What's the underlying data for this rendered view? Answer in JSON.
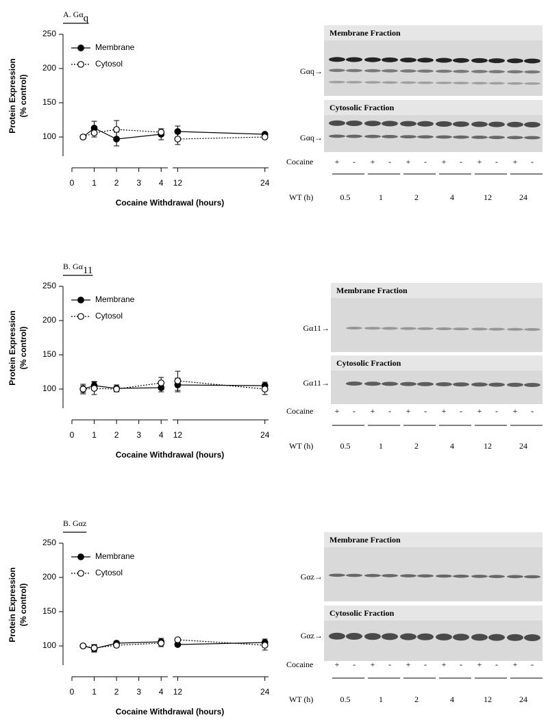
{
  "chart_data": [
    {
      "type": "line",
      "title": [
        "A. Gα",
        "q"
      ],
      "ylabel": [
        "Protein Expression",
        "(% control)"
      ],
      "xlabel": "Cocaine Withdrawal (hours)",
      "x": [
        0.5,
        1,
        2,
        4,
        12,
        24
      ],
      "xlim": [
        0,
        24.5
      ],
      "xbreak": [
        4.3,
        11.3
      ],
      "xticks": [
        0,
        1,
        2,
        3,
        4,
        12,
        24
      ],
      "ylim": [
        75,
        250
      ],
      "yticks": [
        100,
        150,
        200,
        250
      ],
      "series": [
        {
          "name": "Membrane",
          "color": "#000000",
          "marker": "filled",
          "linestyle": "solid",
          "values": [
            100,
            113,
            97,
            104,
            108,
            104
          ],
          "errors": [
            0,
            10,
            10,
            8,
            8,
            0
          ]
        },
        {
          "name": "Cytosol",
          "color": "#000000",
          "marker": "open",
          "linestyle": "dotted",
          "values": [
            100,
            106,
            111,
            107,
            97,
            100
          ],
          "errors": [
            0,
            6,
            13,
            5,
            8,
            0
          ]
        }
      ]
    },
    {
      "type": "line",
      "title": [
        "B. Gα",
        "11"
      ],
      "ylabel": [
        "Protein Expression",
        "(% control)"
      ],
      "xlabel": "Cocaine Withdrawal (hours)",
      "x": [
        0.5,
        1,
        2,
        4,
        12,
        24
      ],
      "xlim": [
        0,
        24.5
      ],
      "xbreak": [
        4.3,
        11.3
      ],
      "xticks": [
        0,
        1,
        2,
        3,
        4,
        12,
        24
      ],
      "ylim": [
        75,
        250
      ],
      "yticks": [
        100,
        150,
        200,
        250
      ],
      "series": [
        {
          "name": "Membrane",
          "color": "#000000",
          "marker": "filled",
          "linestyle": "solid",
          "values": [
            100,
            105,
            101,
            102,
            106,
            105
          ],
          "errors": [
            7,
            6,
            5,
            6,
            10,
            5
          ]
        },
        {
          "name": "Cytosol",
          "color": "#000000",
          "marker": "open",
          "linestyle": "dotted",
          "values": [
            100,
            101,
            100,
            109,
            112,
            100
          ],
          "errors": [
            5,
            9,
            4,
            8,
            14,
            8
          ]
        }
      ]
    },
    {
      "type": "line",
      "title": [
        "B. Gαz"
      ],
      "ylabel": [
        "Protein Expression",
        "(% control)"
      ],
      "xlabel": "Cocaine Withdrawal (hours)",
      "x": [
        0.5,
        1,
        2,
        4,
        12,
        24
      ],
      "xlim": [
        0,
        24.5
      ],
      "xbreak": [
        4.3,
        11.3
      ],
      "xticks": [
        0,
        1,
        2,
        3,
        4,
        12,
        24
      ],
      "ylim": [
        75,
        250
      ],
      "yticks": [
        100,
        150,
        200,
        250
      ],
      "series": [
        {
          "name": "Membrane",
          "color": "#000000",
          "marker": "filled",
          "linestyle": "solid",
          "values": [
            100,
            96,
            104,
            106,
            102,
            105
          ],
          "errors": [
            0,
            5,
            3,
            5,
            0,
            5
          ]
        },
        {
          "name": "Cytosol",
          "color": "#000000",
          "marker": "open",
          "linestyle": "dotted",
          "values": [
            100,
            97,
            101,
            104,
            109,
            101
          ],
          "errors": [
            0,
            5,
            3,
            5,
            0,
            7
          ]
        }
      ]
    }
  ],
  "blots": [
    {
      "membrane_title": "Membrane Fraction",
      "cytosol_title": "Cytosolic Fraction",
      "band_labels": [
        "Gαq→",
        "Gαq→"
      ],
      "treatment_label": "Cocaine",
      "signs": [
        "+",
        "-",
        "+",
        "-",
        "+",
        "-",
        "+",
        "-",
        "+",
        "-",
        "+",
        "-"
      ],
      "time_label": "WT (h)",
      "times": [
        "0.5",
        "1",
        "2",
        "4",
        "12",
        "24"
      ]
    },
    {
      "membrane_title": "Membrane Fraction",
      "cytosol_title": "Cytosolic Fraction",
      "band_labels": [
        "Gα11→",
        "Gα11→"
      ],
      "treatment_label": "Cocaine",
      "signs": [
        "+",
        "-",
        "+",
        "-",
        "+",
        "-",
        "+",
        "-",
        "+",
        "-",
        "+",
        "-"
      ],
      "time_label": "WT (h)",
      "times": [
        "0.5",
        "1",
        "2",
        "4",
        "12",
        "24"
      ]
    },
    {
      "membrane_title": "Membrane Fraction",
      "cytosol_title": "Cytosolic Fraction",
      "band_labels": [
        "Gαz→",
        "Gαz→"
      ],
      "treatment_label": "Cocaine",
      "signs": [
        "+",
        "-",
        "+",
        "-",
        "+",
        "-",
        "+",
        "-",
        "+",
        "-",
        "+",
        "-"
      ],
      "time_label": "WT (h)",
      "times": [
        "0.5",
        "1",
        "2",
        "4",
        "12",
        "24"
      ]
    }
  ]
}
